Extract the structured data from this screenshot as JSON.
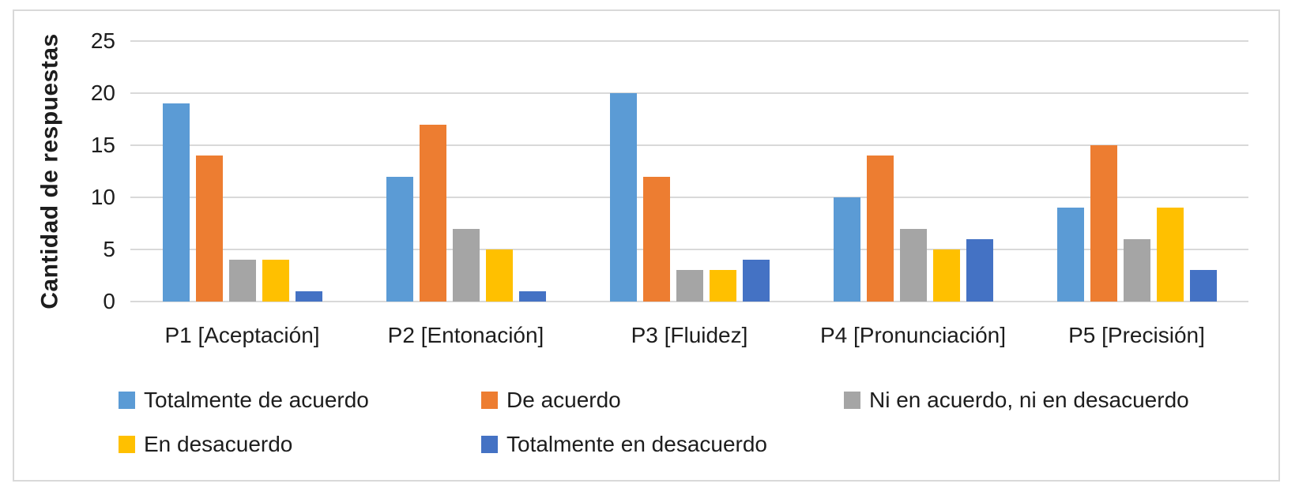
{
  "colors": {
    "border": "#D9D9D9",
    "gridline": "#D9D9D9",
    "axis_line": "#D9D9D9",
    "text": "#1d1d1d"
  },
  "chart_data": {
    "type": "bar",
    "title": "",
    "xlabel": "",
    "ylabel": "Cantidad de respuestas",
    "ylim": [
      0,
      25
    ],
    "y_ticks": [
      0,
      5,
      10,
      15,
      20,
      25
    ],
    "grid": "horizontal gridlines on",
    "legend_position": "bottom",
    "categories": [
      "P1 [Aceptación]",
      "P2 [Entonación]",
      "P3 [Fluidez]",
      "P4 [Pronunciación]",
      "P5 [Precisión]"
    ],
    "series": [
      {
        "name": "Totalmente de acuerdo",
        "color": "#5B9BD5",
        "values": [
          19,
          12,
          20,
          10,
          9
        ]
      },
      {
        "name": "De acuerdo",
        "color": "#ED7D31",
        "values": [
          14,
          17,
          12,
          14,
          15
        ]
      },
      {
        "name": "Ni en acuerdo, ni en desacuerdo",
        "color": "#A5A5A5",
        "values": [
          4,
          7,
          3,
          7,
          6
        ]
      },
      {
        "name": "En desacuerdo",
        "color": "#FFC000",
        "values": [
          4,
          5,
          3,
          5,
          9
        ]
      },
      {
        "name": "Totalmente en desacuerdo",
        "color": "#4472C4",
        "values": [
          1,
          1,
          4,
          6,
          3
        ]
      }
    ]
  }
}
